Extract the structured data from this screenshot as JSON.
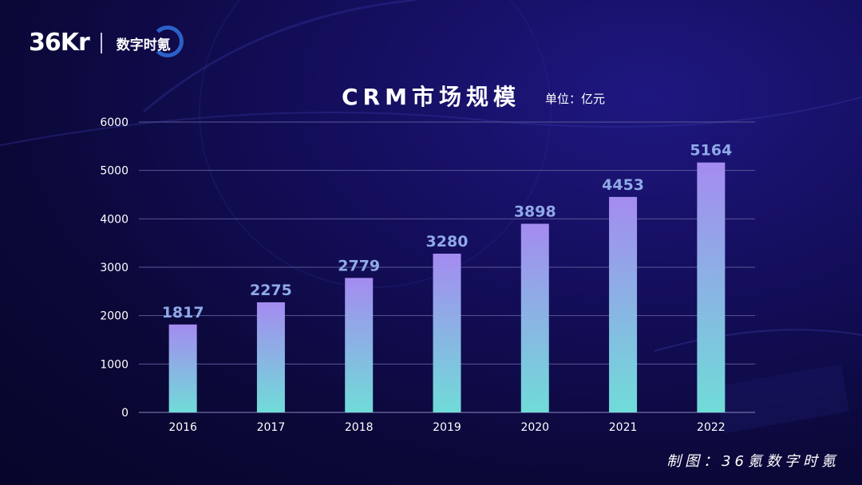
{
  "brand": {
    "logo_text": "36Kr",
    "sub_text": "数字时氪"
  },
  "colors": {
    "bar_top": "#a48bf0",
    "bar_bottom": "#70dcd8",
    "label": "#8fa9e8",
    "grid": "#5a5696"
  },
  "chart_data": {
    "type": "bar",
    "title": "CRM市场规模",
    "unit": "单位：亿元",
    "categories": [
      "2016",
      "2017",
      "2018",
      "2019",
      "2020",
      "2021",
      "2022"
    ],
    "values": [
      1817,
      2275,
      2779,
      3280,
      3898,
      4453,
      5164
    ],
    "ylim": [
      0,
      6000
    ],
    "yticks": [
      "0",
      "1000",
      "2000",
      "3000",
      "4000",
      "5000",
      "6000"
    ],
    "grid": true,
    "legend": "none"
  },
  "footer": {
    "credit": "制图：36氪数字时氪"
  }
}
